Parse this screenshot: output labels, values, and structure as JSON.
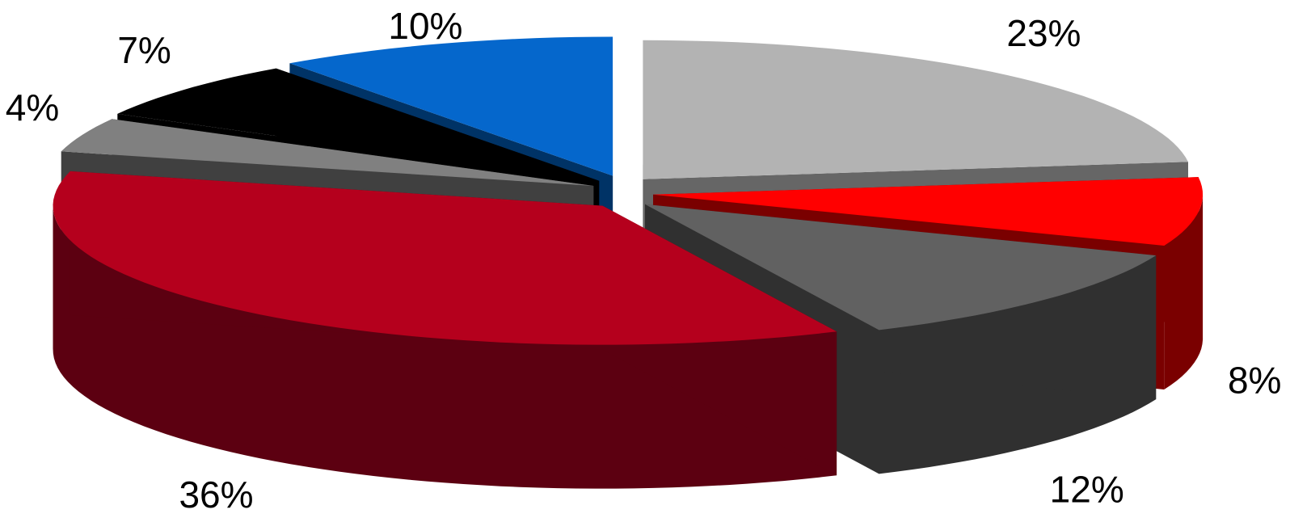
{
  "chart_data": {
    "type": "pie",
    "three_d": true,
    "exploded": true,
    "legend": "none",
    "slices": [
      {
        "value": 23,
        "label": "23%",
        "top_color": "#b3b3b3",
        "side_color": "#666666"
      },
      {
        "value": 8,
        "label": "8%",
        "top_color": "#ff0000",
        "side_color": "#7a0000"
      },
      {
        "value": 12,
        "label": "12%",
        "top_color": "#616161",
        "side_color": "#303030"
      },
      {
        "value": 36,
        "label": "36%",
        "top_color": "#b5001d",
        "side_color": "#5c0011"
      },
      {
        "value": 4,
        "label": "4%",
        "top_color": "#808080",
        "side_color": "#404040"
      },
      {
        "value": 7,
        "label": "7%",
        "top_color": "#000000",
        "side_color": "#000000"
      },
      {
        "value": 10,
        "label": "10%",
        "top_color": "#0567cc",
        "side_color": "#003366"
      }
    ]
  }
}
